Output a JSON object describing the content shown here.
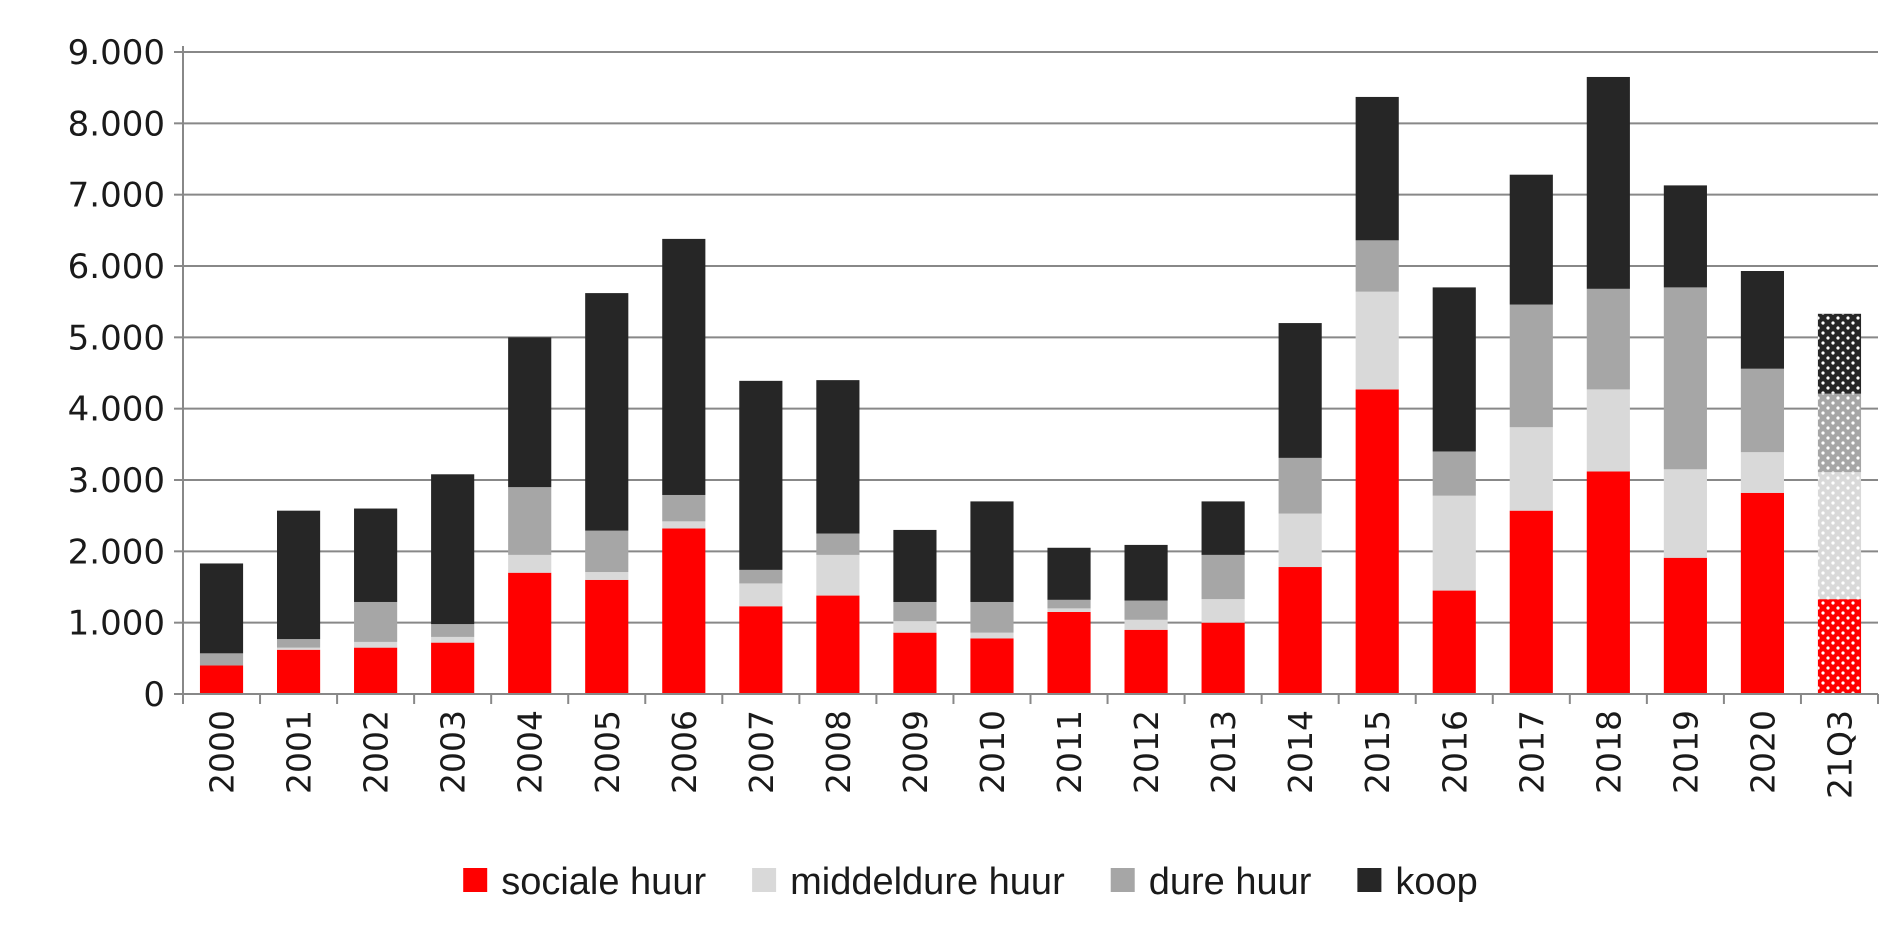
{
  "chart_data": {
    "type": "bar",
    "stacked": true,
    "title": "",
    "xlabel": "",
    "ylabel": "",
    "ylim": [
      0,
      9000
    ],
    "yticks": [
      0,
      1000,
      2000,
      3000,
      4000,
      5000,
      6000,
      7000,
      8000,
      9000
    ],
    "ytick_labels": [
      "0",
      "1.000",
      "2.000",
      "3.000",
      "4.000",
      "5.000",
      "6.000",
      "7.000",
      "8.000",
      "9.000"
    ],
    "grid": "horizontal",
    "legend_position": "bottom",
    "categories": [
      "2000",
      "2001",
      "2002",
      "2003",
      "2004",
      "2005",
      "2006",
      "2007",
      "2008",
      "2009",
      "2010",
      "2011",
      "2012",
      "2013",
      "2014",
      "2015",
      "2016",
      "2017",
      "2018",
      "2019",
      "2020",
      "21Q3"
    ],
    "projected_categories": [
      "21Q3"
    ],
    "series": [
      {
        "name": "sociale huur",
        "color": "#ff0000",
        "values": [
          400,
          620,
          650,
          720,
          1700,
          1600,
          2320,
          1230,
          1380,
          860,
          780,
          1150,
          900,
          1000,
          1780,
          4270,
          1450,
          2570,
          3120,
          1910,
          2820,
          1330
        ]
      },
      {
        "name": "middeldure huur",
        "color": "#d9d9d9",
        "values": [
          0,
          30,
          80,
          80,
          250,
          110,
          100,
          320,
          570,
          160,
          80,
          50,
          140,
          330,
          750,
          1370,
          1330,
          1170,
          1150,
          1240,
          570,
          1780
        ]
      },
      {
        "name": "dure huur",
        "color": "#a6a6a6",
        "values": [
          170,
          120,
          560,
          180,
          950,
          580,
          370,
          190,
          300,
          270,
          430,
          120,
          270,
          620,
          780,
          720,
          620,
          1720,
          1410,
          2550,
          1170,
          1100
        ]
      },
      {
        "name": "koop",
        "color": "#262626",
        "values": [
          1260,
          1800,
          1310,
          2100,
          2100,
          3330,
          3590,
          2650,
          2150,
          1010,
          1410,
          730,
          780,
          750,
          1890,
          2010,
          2300,
          1820,
          2970,
          1430,
          1370,
          1120
        ]
      }
    ]
  }
}
